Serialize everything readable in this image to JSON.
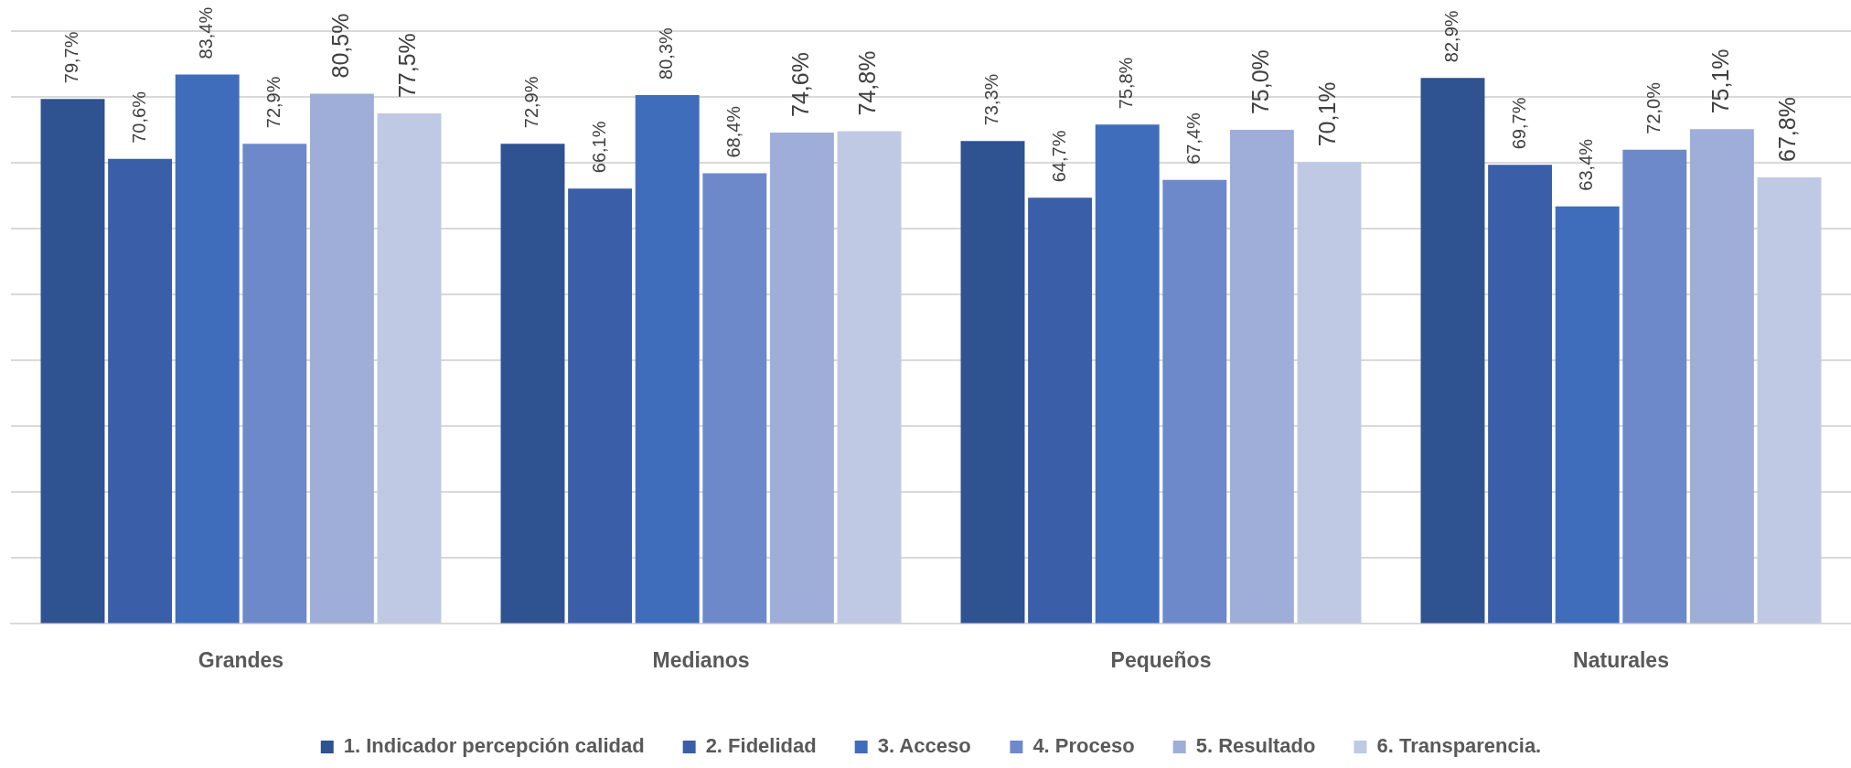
{
  "chart_data": {
    "type": "bar",
    "categories": [
      "Grandes",
      "Medianos",
      "Pequeños",
      "Naturales"
    ],
    "series": [
      {
        "name": "1. Indicador percepción calidad",
        "color": "#2f5290",
        "values": [
          79.7,
          72.9,
          73.3,
          82.9
        ],
        "value_labels": [
          "79,7%",
          "72,9%",
          "73,3%",
          "82,9%"
        ]
      },
      {
        "name": "2. Fidelidad",
        "color": "#3a5fa8",
        "values": [
          70.6,
          66.1,
          64.7,
          69.7
        ],
        "value_labels": [
          "70,6%",
          "66,1%",
          "64,7%",
          "69,7%"
        ]
      },
      {
        "name": "3. Acceso",
        "color": "#3f6dbb",
        "values": [
          83.4,
          80.3,
          75.8,
          63.4
        ],
        "value_labels": [
          "83,4%",
          "80,3%",
          "75,8%",
          "63,4%"
        ]
      },
      {
        "name": "4. Proceso",
        "color": "#6e89c9",
        "values": [
          72.9,
          68.4,
          67.4,
          72.0
        ],
        "value_labels": [
          "72,9%",
          "68,4%",
          "67,4%",
          "72,0%"
        ]
      },
      {
        "name": "5. Resultado",
        "color": "#9eaed8",
        "values": [
          80.5,
          74.6,
          75.0,
          75.1
        ],
        "value_labels": [
          "80,5%",
          "74,6%",
          "75,0%",
          "75,1%"
        ]
      },
      {
        "name": "6. Transparencia.",
        "color": "#bfc9e4",
        "values": [
          77.5,
          74.8,
          70.1,
          67.8
        ],
        "value_labels": [
          "77,5%",
          "74,8%",
          "70,1%",
          "67,8%"
        ]
      }
    ],
    "ylim": [
      0,
      90
    ],
    "yticks": [
      {
        "value": 0,
        "label": null
      },
      {
        "value": 10,
        "label": null
      },
      {
        "value": 20,
        "label": null
      },
      {
        "value": 30,
        "label": null
      },
      {
        "value": 40,
        "label": null
      },
      {
        "value": 50,
        "label": null
      },
      {
        "value": 60,
        "label": null
      },
      {
        "value": 70,
        "label": null
      },
      {
        "value": 80,
        "label": null
      },
      {
        "value": 90,
        "label": null
      }
    ],
    "grid": "y",
    "legend": "bottom",
    "tick_labels": "x"
  }
}
